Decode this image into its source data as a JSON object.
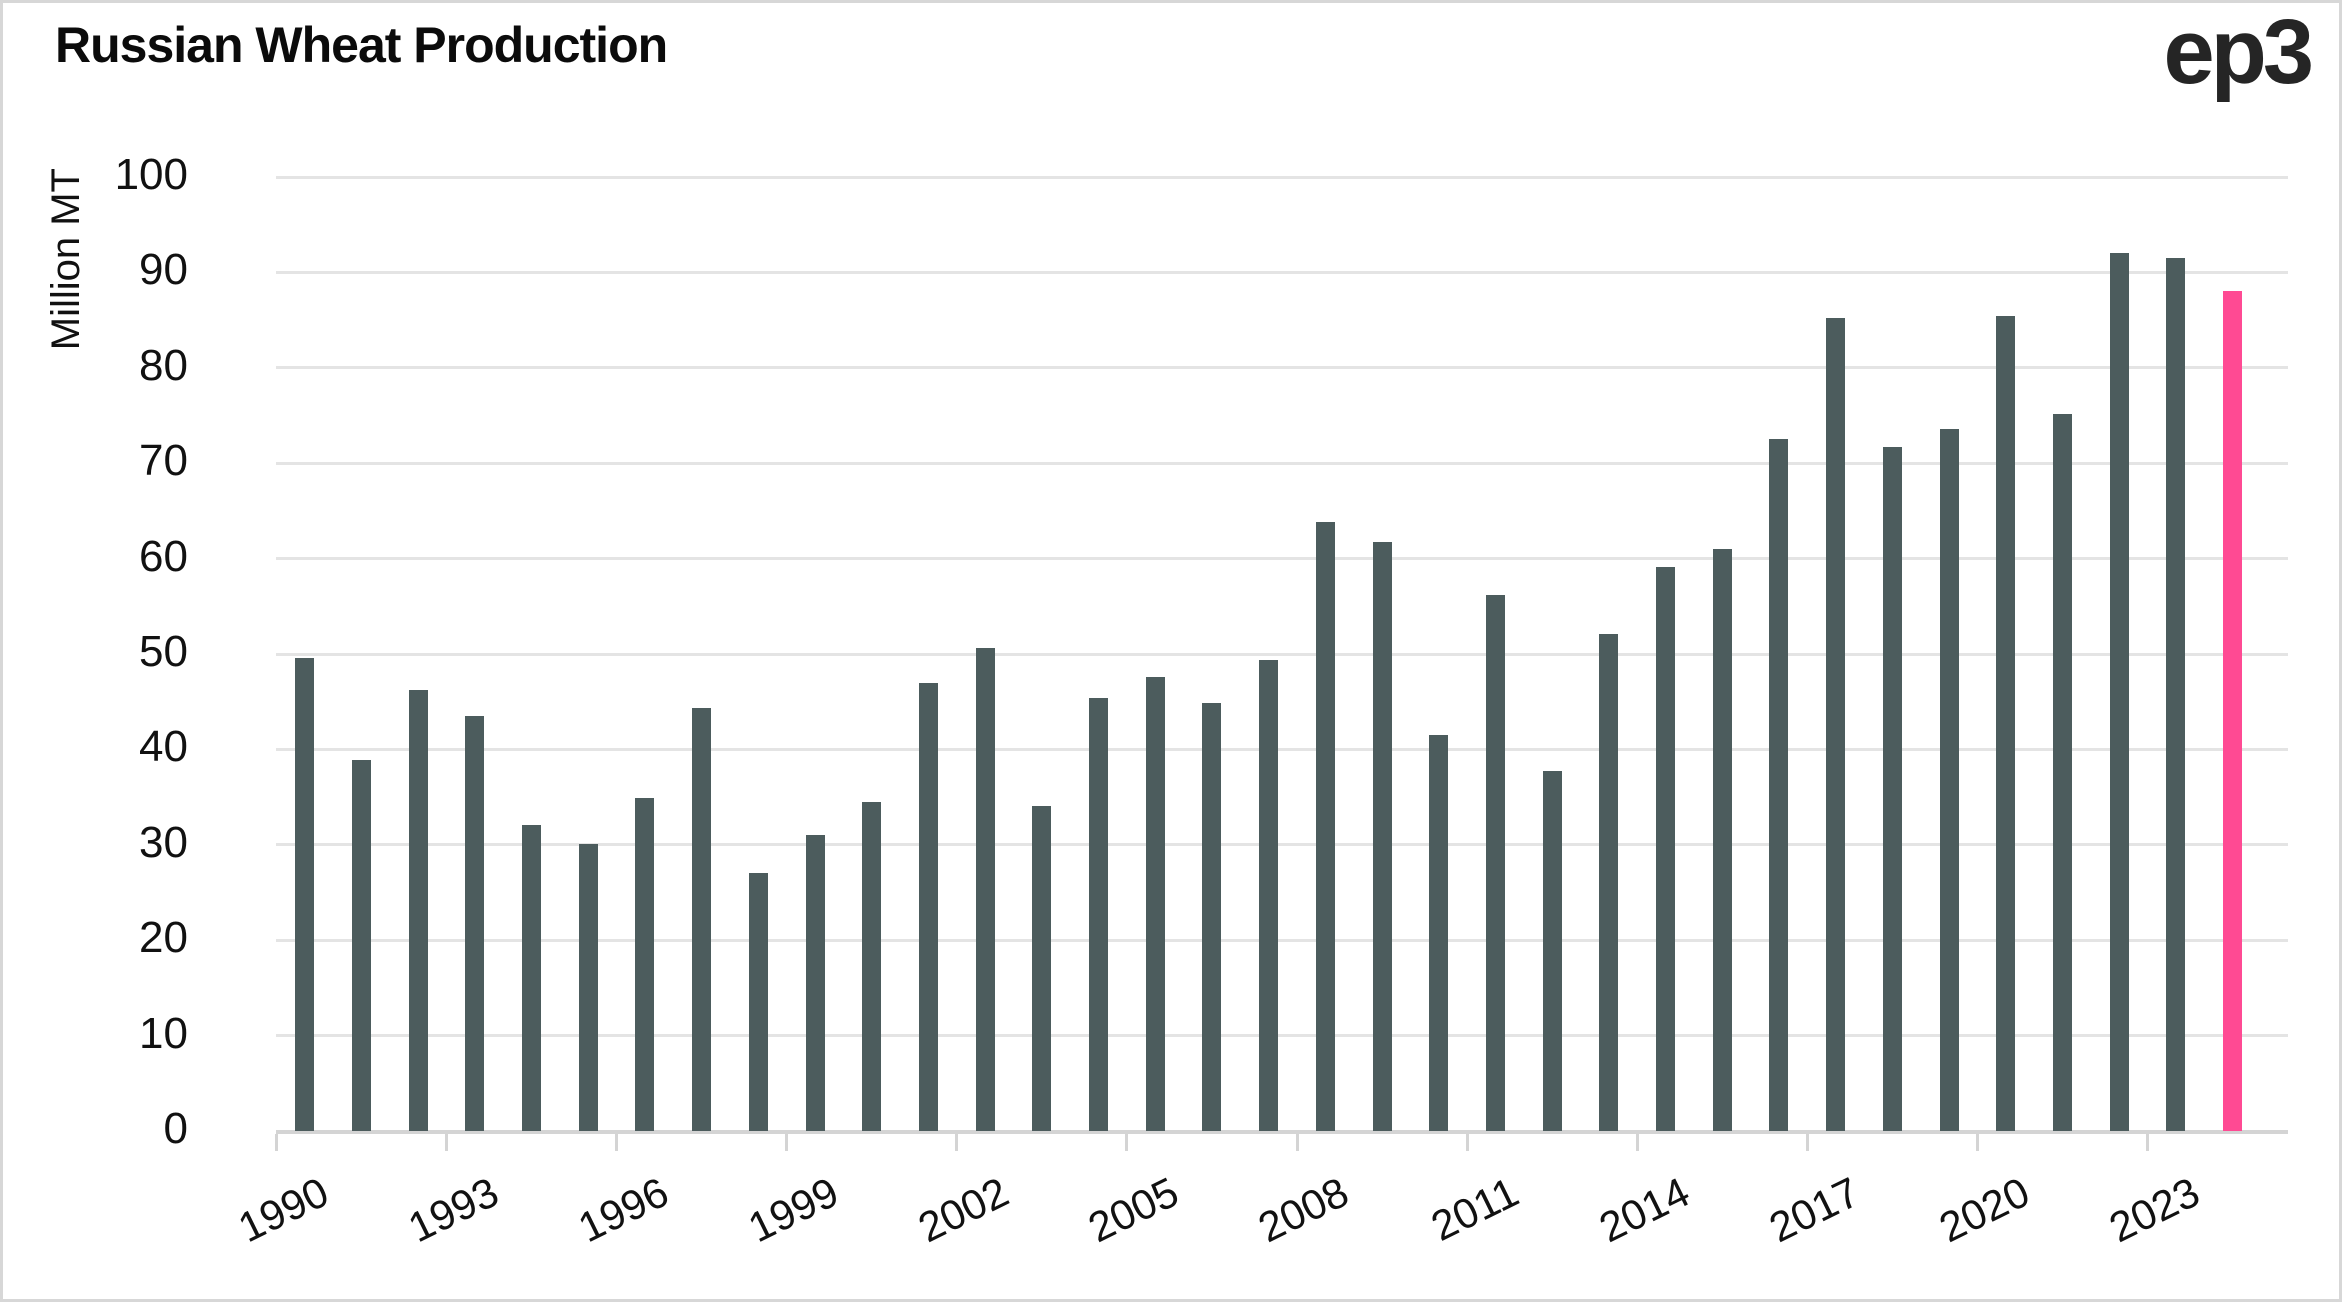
{
  "page": {
    "title": "Russian Wheat Production",
    "logo": "ep3"
  },
  "chart_data": {
    "type": "bar",
    "title": "Russian Wheat Production",
    "xlabel": "",
    "ylabel": "Million MT",
    "ylim": [
      0,
      100
    ],
    "y_ticks": [
      0,
      10,
      20,
      30,
      40,
      50,
      60,
      70,
      80,
      90,
      100
    ],
    "grid": "horizontal",
    "legend": "none",
    "categories": [
      1990,
      1991,
      1992,
      1993,
      1994,
      1995,
      1996,
      1997,
      1998,
      1999,
      2000,
      2001,
      2002,
      2003,
      2004,
      2005,
      2006,
      2007,
      2008,
      2009,
      2010,
      2011,
      2012,
      2013,
      2014,
      2015,
      2016,
      2017,
      2018,
      2019,
      2020,
      2021,
      2022,
      2023,
      2024
    ],
    "values": [
      49.6,
      38.9,
      46.2,
      43.5,
      32.1,
      30.1,
      34.9,
      44.3,
      27.0,
      31.0,
      34.5,
      47.0,
      50.6,
      34.1,
      45.4,
      47.6,
      44.9,
      49.4,
      63.8,
      61.7,
      41.5,
      56.2,
      37.7,
      52.1,
      59.1,
      61.0,
      72.5,
      85.2,
      71.7,
      73.6,
      85.4,
      75.2,
      92.0,
      91.5,
      88.0
    ],
    "x_tick_labels": [
      "1990",
      "1993",
      "1996",
      "1999",
      "2002",
      "2005",
      "2008",
      "2011",
      "2014",
      "2017",
      "2020",
      "2023"
    ],
    "bar_color": "#4c5c5d",
    "highlight_color": "#ff4a93",
    "highlight_index": 34,
    "highlight_note": "rightmost (2024) bar highlighted in pink"
  },
  "colors": {
    "background": "#ffffff",
    "gridline": "#e4e4e4",
    "axis_line": "#d4d4d4",
    "text": "#111111",
    "title": "#0b0b0b",
    "logo": "#252525"
  }
}
